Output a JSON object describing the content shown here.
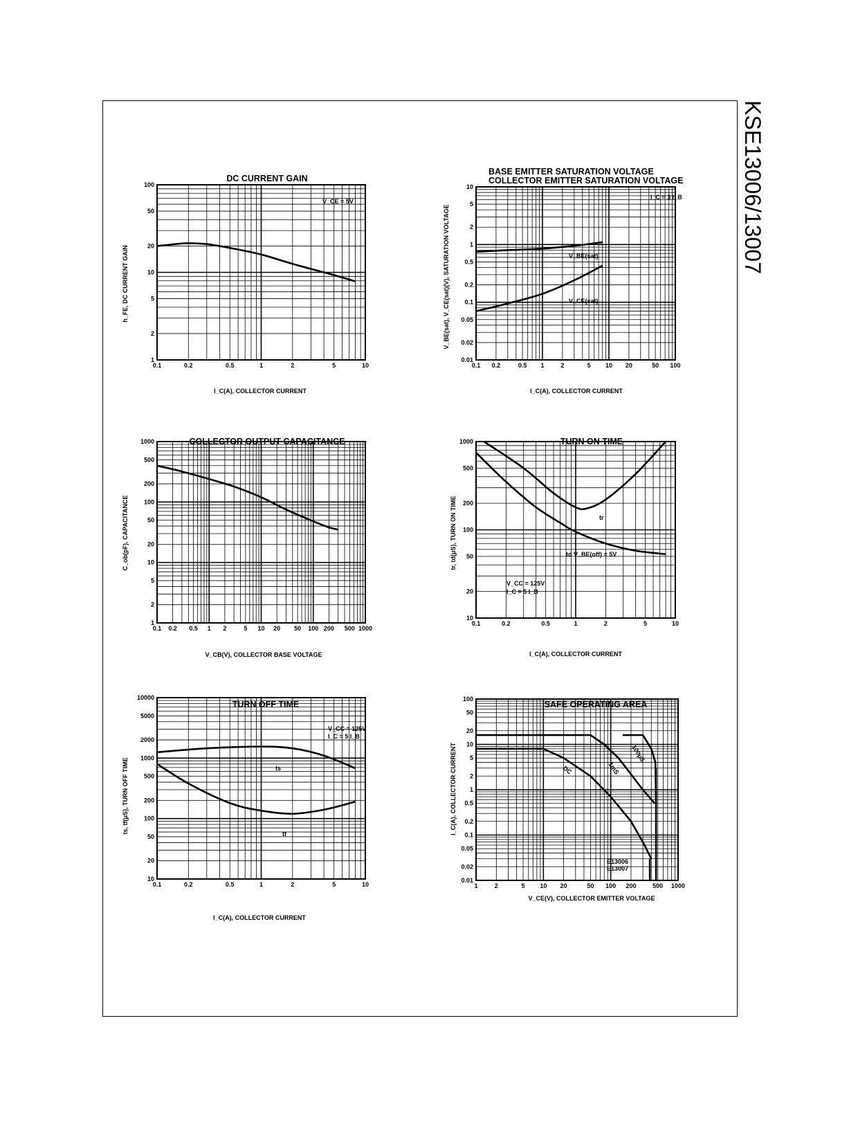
{
  "page": {
    "side_title": "KSE13006/13007"
  },
  "chart_data": [
    {
      "id": "dc-current-gain",
      "type": "line",
      "title": "DC CURRENT GAIN",
      "xlabel": "I_C(A), COLLECTOR CURRENT",
      "ylabel": "h_FE, DC CURRENT GAIN",
      "xscale": "log",
      "yscale": "log",
      "xlim": [
        0.1,
        10
      ],
      "ylim": [
        1,
        100
      ],
      "xticks": [
        0.1,
        0.2,
        0.5,
        1,
        2,
        5,
        10
      ],
      "xtick_labels": [
        "0.1",
        "0.2",
        "0.5",
        "1",
        "2",
        "5",
        "10"
      ],
      "yticks": [
        1,
        2,
        5,
        10,
        20,
        50,
        100
      ],
      "ytick_labels": [
        "1",
        "2",
        "5",
        "10",
        "20",
        "50",
        "100"
      ],
      "grid": true,
      "annotations": [
        {
          "text": "V_CE = 5V"
        }
      ],
      "series": [
        {
          "x": [
            0.1,
            0.15,
            0.2,
            0.3,
            0.5,
            1,
            2,
            5,
            8
          ],
          "y": [
            20,
            21,
            21.5,
            21,
            19,
            16,
            12.5,
            9.3,
            7.9
          ]
        }
      ]
    },
    {
      "id": "saturation-voltage",
      "type": "line",
      "title": [
        "BASE EMITTER SATURATION VOLTAGE",
        "COLLECTOR EMITTER SATURATION VOLTAGE"
      ],
      "xlabel": "I_C(A), COLLECTOR CURRENT",
      "ylabel": "V_BE(sat), V_CE(sat)(V), SATURATION VOLTAGE",
      "xscale": "log",
      "yscale": "log",
      "xlim": [
        0.1,
        100
      ],
      "ylim": [
        0.01,
        10
      ],
      "xticks": [
        0.1,
        0.2,
        0.5,
        1,
        2,
        5,
        10,
        20,
        50,
        100
      ],
      "xtick_labels": [
        "0.1",
        "0.2",
        "0.5",
        "1",
        "2",
        "5",
        "10",
        "20",
        "50",
        "100"
      ],
      "yticks": [
        0.01,
        0.02,
        0.05,
        0.1,
        0.2,
        0.5,
        1,
        2,
        5,
        10
      ],
      "ytick_labels": [
        "0.01",
        "0.02",
        "0.05",
        "0.1",
        "0.2",
        "0.5",
        "1",
        "2",
        "5",
        "10"
      ],
      "grid": true,
      "annotations": [
        {
          "text": "I_C = 3 I_B"
        }
      ],
      "series": [
        {
          "name": "V_BE(sat)",
          "x": [
            0.1,
            0.3,
            1,
            3,
            8
          ],
          "y": [
            0.75,
            0.8,
            0.85,
            0.95,
            1.1
          ]
        },
        {
          "name": "V_CE(sat)",
          "x": [
            0.1,
            0.3,
            1,
            3,
            8
          ],
          "y": [
            0.07,
            0.095,
            0.14,
            0.24,
            0.43
          ]
        }
      ]
    },
    {
      "id": "collector-output-capacitance",
      "type": "line",
      "title": "COLLECTOR OUTPUT CAPACITANCE",
      "xlabel": "V_CB(V), COLLECTOR BASE VOLTAGE",
      "ylabel": "C_ob(pF), CAPACITANCE",
      "xscale": "log",
      "yscale": "log",
      "xlim": [
        0.1,
        1000
      ],
      "ylim": [
        1,
        1000
      ],
      "xticks": [
        0.1,
        0.2,
        0.5,
        1,
        2,
        5,
        10,
        20,
        50,
        100,
        200,
        500,
        1000
      ],
      "xtick_labels": [
        "0.1",
        "0.2",
        "0.5",
        "1",
        "2",
        "5",
        "10",
        "20",
        "50",
        "100",
        "200",
        "500",
        "1000"
      ],
      "yticks": [
        1,
        2,
        5,
        10,
        20,
        50,
        100,
        200,
        500,
        1000
      ],
      "ytick_labels": [
        "1",
        "2",
        "5",
        "10",
        "20",
        "50",
        "100",
        "200",
        "500",
        "1000"
      ],
      "grid": true,
      "series": [
        {
          "x": [
            0.1,
            0.3,
            1,
            3,
            10,
            30,
            100,
            200,
            300
          ],
          "y": [
            400,
            320,
            240,
            180,
            120,
            75,
            48,
            38,
            35
          ]
        }
      ]
    },
    {
      "id": "turn-on-time",
      "type": "line",
      "title": "TURN ON TIME",
      "xlabel": "I_C(A), COLLECTOR CURRENT",
      "ylabel": "tr, td(μS), TURN ON TIME",
      "xscale": "log",
      "yscale": "log",
      "xlim": [
        0.1,
        10
      ],
      "ylim": [
        10,
        1000
      ],
      "xticks": [
        0.1,
        0.2,
        0.5,
        1,
        2,
        5,
        10
      ],
      "xtick_labels": [
        "0.1",
        "0.2",
        "0.5",
        "1",
        "2",
        "5",
        "10"
      ],
      "yticks": [
        10,
        20,
        50,
        100,
        200,
        500,
        1000
      ],
      "ytick_labels": [
        "10",
        "20",
        "50",
        "100",
        "200",
        "500",
        "1000"
      ],
      "grid": true,
      "annotations": [
        {
          "text": "V_CC = 125V"
        },
        {
          "text": "I_C = 5 I_B"
        }
      ],
      "series": [
        {
          "name": "tr",
          "x": [
            0.12,
            0.3,
            0.6,
            1,
            1.3,
            2,
            4,
            8
          ],
          "y": [
            1000,
            500,
            260,
            180,
            175,
            220,
            430,
            1000
          ]
        },
        {
          "name": "td V_BE(off) = 5V",
          "x": [
            0.1,
            0.2,
            0.4,
            0.7,
            1,
            2,
            4,
            8
          ],
          "y": [
            750,
            350,
            180,
            120,
            95,
            70,
            58,
            53
          ]
        }
      ]
    },
    {
      "id": "turn-off-time",
      "type": "line",
      "title": "TURN OFF TIME",
      "xlabel": "I_C(A), COLLECTOR CURRENT",
      "ylabel": "ts, tf(μS), TURN OFF TIME",
      "xscale": "log",
      "yscale": "log",
      "xlim": [
        0.1,
        10
      ],
      "ylim": [
        10,
        10000
      ],
      "xticks": [
        0.1,
        0.2,
        0.5,
        1,
        2,
        5,
        10
      ],
      "xtick_labels": [
        "0.1",
        "0.2",
        "0.5",
        "1",
        "2",
        "5",
        "10"
      ],
      "yticks": [
        10,
        20,
        50,
        100,
        200,
        500,
        1000,
        2000,
        5000,
        10000
      ],
      "ytick_labels": [
        "10",
        "20",
        "50",
        "100",
        "200",
        "500",
        "1000",
        "2000",
        "5000",
        "10000"
      ],
      "grid": true,
      "annotations": [
        {
          "text": "V_CC = 125V"
        },
        {
          "text": "I_C = 5 I_B"
        }
      ],
      "series": [
        {
          "name": "ts",
          "x": [
            0.1,
            0.3,
            1,
            2,
            4,
            8
          ],
          "y": [
            1250,
            1450,
            1550,
            1450,
            1100,
            680
          ]
        },
        {
          "name": "tf",
          "x": [
            0.1,
            0.2,
            0.5,
            1,
            2,
            4,
            8
          ],
          "y": [
            800,
            380,
            180,
            135,
            120,
            140,
            190
          ]
        }
      ]
    },
    {
      "id": "safe-operating-area",
      "type": "line",
      "title": "SAFE OPERATING AREA",
      "xlabel": "V_CE(V), COLLECTOR EMITTER VOLTAGE",
      "ylabel": "I_C(A), COLLECTOR CURRENT",
      "xscale": "log",
      "yscale": "log",
      "xlim": [
        1,
        1000
      ],
      "ylim": [
        0.01,
        100
      ],
      "xticks": [
        1,
        2,
        5,
        10,
        20,
        50,
        100,
        200,
        500,
        1000
      ],
      "xtick_labels": [
        "1",
        "2",
        "5",
        "10",
        "20",
        "50",
        "100",
        "200",
        "500",
        "1000"
      ],
      "yticks": [
        0.01,
        0.02,
        0.05,
        0.1,
        0.2,
        0.5,
        1,
        2,
        5,
        10,
        20,
        50,
        100
      ],
      "ytick_labels": [
        "0.01",
        "0.02",
        "0.05",
        "0.1",
        "0.2",
        "0.5",
        "1",
        "2",
        "5",
        "10",
        "20",
        "50",
        "100"
      ],
      "grid": true,
      "annotations": [
        {
          "text": "E13006"
        },
        {
          "text": "E13007"
        }
      ],
      "series": [
        {
          "name": "DC",
          "x": [
            1,
            10,
            20,
            50,
            100,
            200,
            300,
            400
          ],
          "y": [
            8,
            8,
            5,
            2,
            0.7,
            0.2,
            0.07,
            0.03
          ]
        },
        {
          "name": "1mS",
          "x": [
            1,
            50,
            80,
            130,
            300,
            450
          ],
          "y": [
            16,
            16,
            10,
            5,
            1,
            0.5
          ]
        },
        {
          "name": "100μS",
          "x": [
            150,
            300,
            400,
            460,
            470
          ],
          "y": [
            16,
            16,
            8,
            4,
            0.6
          ]
        },
        {
          "name": "E13006 limit",
          "x": [
            380,
            380
          ],
          "y": [
            0.01,
            0.03
          ]
        },
        {
          "name": "E13007 limit",
          "x": [
            470,
            470
          ],
          "y": [
            0.01,
            3
          ]
        }
      ]
    }
  ]
}
